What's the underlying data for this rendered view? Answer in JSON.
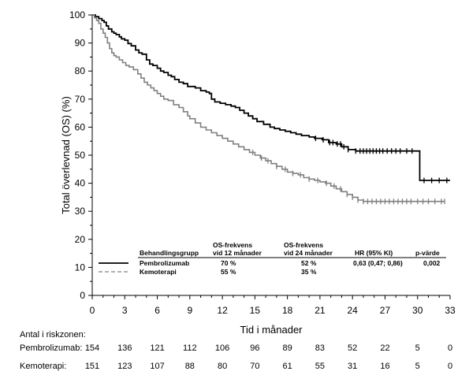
{
  "chart_data": {
    "type": "line",
    "ylabel": "Total överlevnad (OS) (%)",
    "xlabel": "Tid i månader",
    "xlim": [
      0,
      33
    ],
    "ylim": [
      0,
      100
    ],
    "xticks": [
      0,
      3,
      6,
      9,
      12,
      15,
      18,
      21,
      24,
      27,
      30,
      33
    ],
    "yticks": [
      0,
      10,
      20,
      30,
      40,
      50,
      60,
      70,
      80,
      90,
      100
    ],
    "grid": false,
    "series": [
      {
        "name": "Pembrolizumab",
        "color": "#000000",
        "style": "solid",
        "points": [
          [
            0,
            100
          ],
          [
            0.3,
            99.4
          ],
          [
            0.6,
            98.7
          ],
          [
            0.9,
            98
          ],
          [
            1.1,
            97.4
          ],
          [
            1.3,
            96.1
          ],
          [
            1.5,
            95
          ],
          [
            1.8,
            94
          ],
          [
            2,
            93.5
          ],
          [
            2.2,
            93
          ],
          [
            2.5,
            92.2
          ],
          [
            2.7,
            91.5
          ],
          [
            3,
            91
          ],
          [
            3.3,
            89.8
          ],
          [
            3.6,
            89
          ],
          [
            4,
            87.5
          ],
          [
            4.3,
            86.5
          ],
          [
            4.6,
            86
          ],
          [
            5,
            84
          ],
          [
            5.3,
            82.5
          ],
          [
            5.6,
            82
          ],
          [
            6,
            81
          ],
          [
            6.3,
            80
          ],
          [
            6.6,
            79.5
          ],
          [
            7,
            78.5
          ],
          [
            7.3,
            78
          ],
          [
            7.6,
            77
          ],
          [
            8,
            76
          ],
          [
            8.4,
            75.5
          ],
          [
            8.8,
            74.5
          ],
          [
            9,
            74.5
          ],
          [
            9.5,
            74
          ],
          [
            10,
            73
          ],
          [
            10.5,
            72.5
          ],
          [
            10.8,
            72
          ],
          [
            11,
            70
          ],
          [
            11.3,
            69
          ],
          [
            11.8,
            68.5
          ],
          [
            12.3,
            68
          ],
          [
            12.8,
            67.5
          ],
          [
            13.2,
            67
          ],
          [
            13.6,
            66
          ],
          [
            14,
            65
          ],
          [
            14.4,
            64
          ],
          [
            14.8,
            63
          ],
          [
            15.2,
            62
          ],
          [
            15.8,
            61
          ],
          [
            16.4,
            60
          ],
          [
            16.8,
            59.5
          ],
          [
            17.3,
            59
          ],
          [
            17.8,
            58.5
          ],
          [
            18.3,
            58
          ],
          [
            18.8,
            57.5
          ],
          [
            19.3,
            57
          ],
          [
            20,
            56.5
          ],
          [
            20.5,
            56
          ],
          [
            21.2,
            55.5
          ],
          [
            21.8,
            54.5
          ],
          [
            22.5,
            54
          ],
          [
            23,
            53
          ],
          [
            23.6,
            52
          ],
          [
            24.3,
            51.5
          ],
          [
            25,
            51.5
          ],
          [
            26,
            51.5
          ],
          [
            27,
            51.5
          ],
          [
            28,
            51.5
          ],
          [
            29,
            51.5
          ],
          [
            30,
            51.5
          ],
          [
            30.2,
            41
          ],
          [
            31,
            41
          ],
          [
            33,
            41
          ]
        ],
        "censor_x": [
          20.6,
          21.3,
          21.9,
          22.2,
          22.6,
          22.9,
          23.2,
          23.6,
          24.3,
          24.7,
          25.0,
          25.3,
          25.6,
          25.9,
          26.2,
          26.5,
          26.8,
          27.2,
          27.6,
          28.0,
          28.4,
          29.0,
          29.5,
          30.6,
          31.3,
          32.0,
          32.7
        ]
      },
      {
        "name": "Kemoterapi",
        "color": "#808080",
        "style": "solid",
        "points": [
          [
            0,
            100
          ],
          [
            0.2,
            99
          ],
          [
            0.4,
            98
          ],
          [
            0.6,
            97
          ],
          [
            0.8,
            95
          ],
          [
            1,
            93.5
          ],
          [
            1.2,
            92
          ],
          [
            1.4,
            90
          ],
          [
            1.6,
            88
          ],
          [
            1.8,
            86.5
          ],
          [
            2,
            85.5
          ],
          [
            2.2,
            85
          ],
          [
            2.5,
            84
          ],
          [
            2.8,
            83
          ],
          [
            3.1,
            82
          ],
          [
            3.4,
            81.5
          ],
          [
            3.8,
            80.5
          ],
          [
            4.2,
            79
          ],
          [
            4.5,
            77.5
          ],
          [
            4.8,
            76
          ],
          [
            5.1,
            75
          ],
          [
            5.4,
            74
          ],
          [
            5.7,
            73
          ],
          [
            6,
            72
          ],
          [
            6.3,
            71
          ],
          [
            6.6,
            70
          ],
          [
            7,
            69.5
          ],
          [
            7.5,
            68
          ],
          [
            8,
            67
          ],
          [
            8.4,
            65.5
          ],
          [
            8.8,
            64
          ],
          [
            9,
            63
          ],
          [
            9.5,
            61.5
          ],
          [
            10,
            60
          ],
          [
            10.5,
            59
          ],
          [
            11,
            58
          ],
          [
            11.5,
            57
          ],
          [
            12,
            56
          ],
          [
            12.5,
            55
          ],
          [
            13,
            54
          ],
          [
            13.5,
            53
          ],
          [
            14,
            52
          ],
          [
            14.5,
            51
          ],
          [
            15,
            50
          ],
          [
            15.5,
            49
          ],
          [
            16,
            48
          ],
          [
            16.5,
            47
          ],
          [
            17,
            46
          ],
          [
            17.5,
            45
          ],
          [
            18,
            44
          ],
          [
            18.5,
            43.5
          ],
          [
            19,
            43
          ],
          [
            19.5,
            42
          ],
          [
            20,
            41.5
          ],
          [
            20.5,
            41
          ],
          [
            21,
            40.5
          ],
          [
            21.5,
            40
          ],
          [
            22,
            39
          ],
          [
            22.5,
            38
          ],
          [
            23,
            37
          ],
          [
            23.5,
            36
          ],
          [
            24,
            35
          ],
          [
            24.5,
            34
          ],
          [
            25,
            33.5
          ],
          [
            26,
            33.5
          ],
          [
            27,
            33.5
          ],
          [
            28,
            33.5
          ],
          [
            29,
            33.5
          ],
          [
            30,
            33.5
          ],
          [
            31,
            33.5
          ],
          [
            32,
            33.5
          ],
          [
            32.5,
            33.5
          ]
        ],
        "censor_x": [
          14.8,
          15.6,
          16.2,
          17.0,
          17.8,
          18.5,
          19.2,
          20.0,
          20.8,
          21.6,
          22.3,
          22.9,
          23.5,
          24.0,
          24.5,
          25.0,
          25.4,
          25.8,
          26.2,
          26.6,
          27.0,
          27.4,
          27.8,
          28.2,
          28.6,
          29.0,
          29.4,
          30.0,
          30.5,
          31.0,
          31.6,
          32.2,
          32.5
        ]
      }
    ],
    "legend": {
      "header": [
        "Behandlingsgrupp",
        "OS-frekvens\nvid 12 månader",
        "OS-frekvens\nvid 24 månader",
        "HR (95% KI)",
        "p-värde"
      ],
      "rows": [
        {
          "name": "Pembrolizumab",
          "os12": "70 %",
          "os24": "52 %",
          "hr": "0,63 (0,47; 0,86)",
          "p": "0,002"
        },
        {
          "name": "Kemoterapi",
          "os12": "55 %",
          "os24": "35 %",
          "hr": "",
          "p": ""
        }
      ]
    },
    "risk_table": {
      "title": "Antal i riskzonen:",
      "rows": [
        {
          "label": "Pembrolizumab:",
          "values": [
            "154",
            "136",
            "121",
            "112",
            "106",
            "96",
            "89",
            "83",
            "52",
            "22",
            "5",
            "0"
          ]
        },
        {
          "label": "Kemoterapi:",
          "values": [
            "151",
            "123",
            "107",
            "88",
            "80",
            "70",
            "61",
            "55",
            "31",
            "16",
            "5",
            "0"
          ]
        }
      ]
    }
  }
}
